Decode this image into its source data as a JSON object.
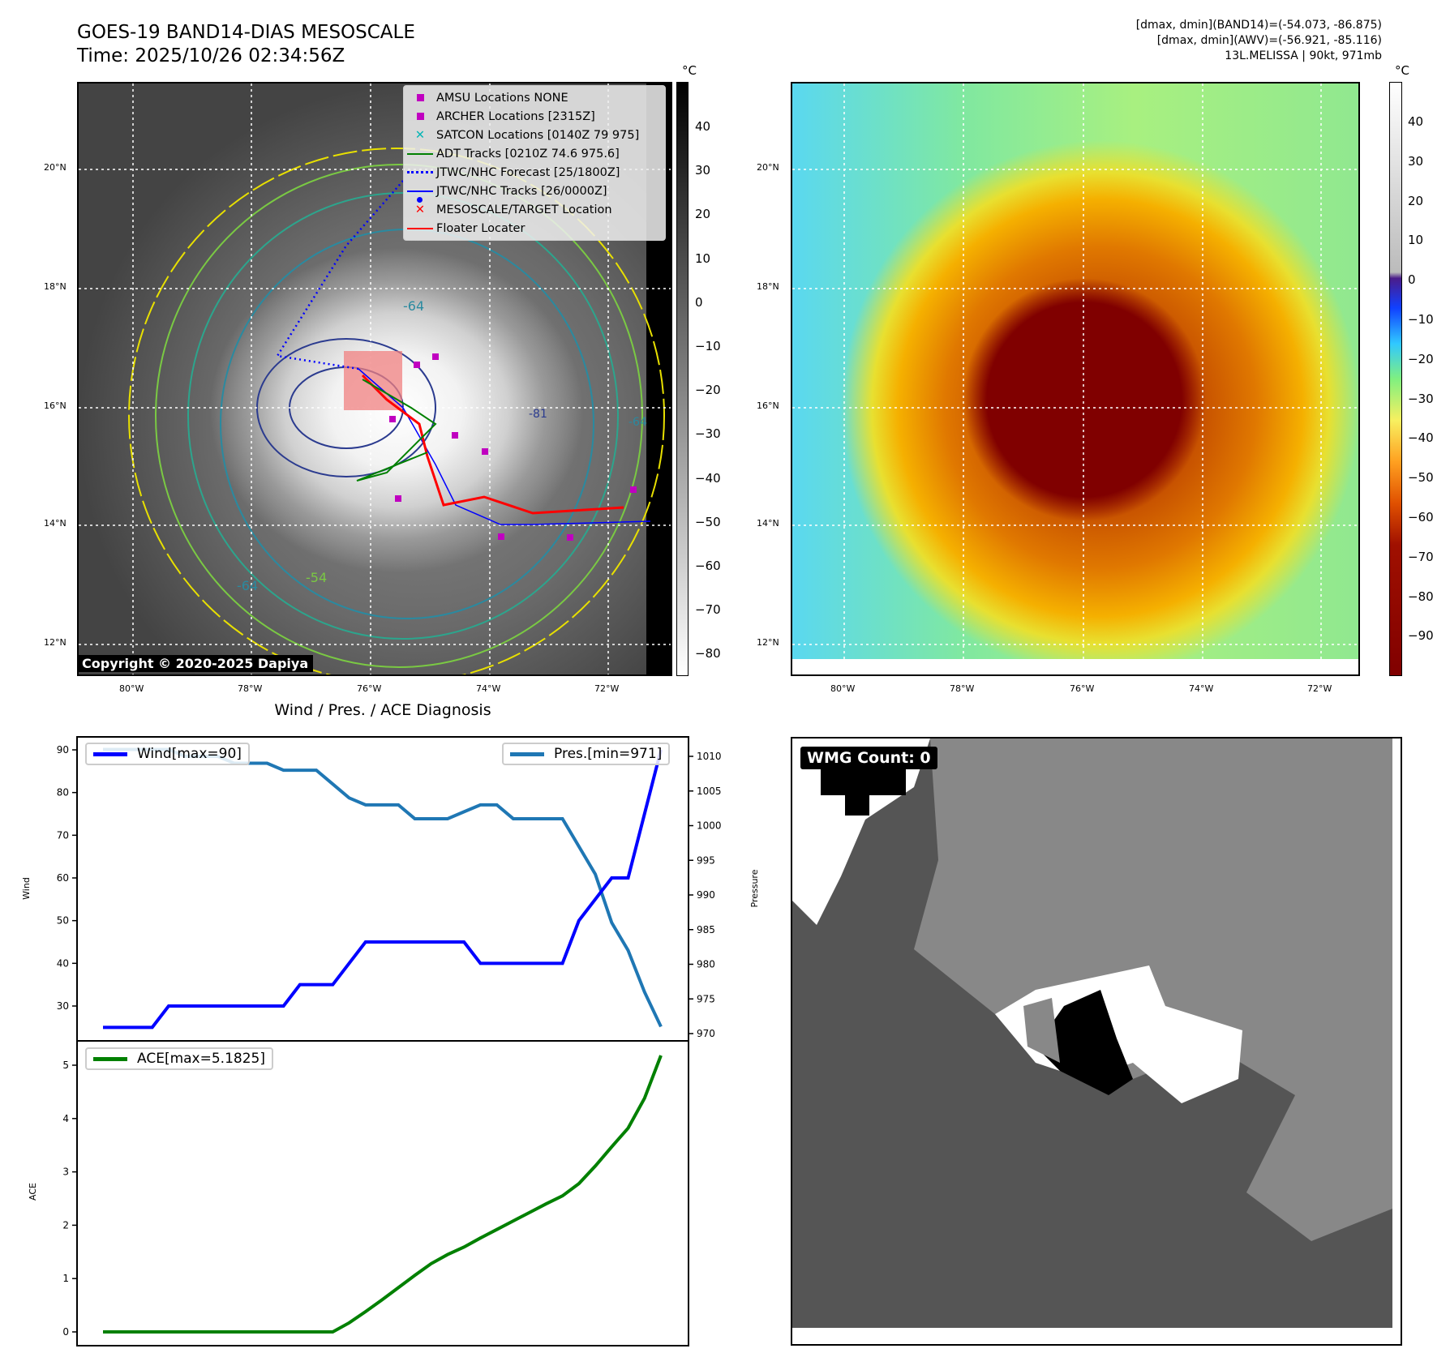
{
  "header": {
    "title": "GOES-19 BAND14-DIAS MESOSCALE",
    "time": "Time: 2025/10/26 02:34:56Z",
    "info_line1": "[dmax, dmin](BAND14)=(-54.073, -86.875)",
    "info_line2": "[dmax, dmin](AWV)=(-56.921, -85.116)",
    "info_line3": "13L.MELISSA | 90kt, 971mb"
  },
  "left_map": {
    "lat_labels": [
      "20°N",
      "18°N",
      "16°N",
      "14°N",
      "12°N"
    ],
    "lon_labels": [
      "80°W",
      "78°W",
      "76°W",
      "74°W",
      "72°W"
    ],
    "contour_labels": [
      "-64",
      "-64",
      "-54",
      "-64",
      "-81"
    ],
    "copyright": "Copyright © 2020-2025 Dapiya",
    "colorbar_unit": "°C",
    "colorbar_ticks": [
      "40",
      "30",
      "20",
      "10",
      "0",
      "−10",
      "−20",
      "−30",
      "−40",
      "−50",
      "−60",
      "−70",
      "−80"
    ],
    "legend": [
      {
        "label": "AMSU Locations NONE",
        "icon": "square-marker",
        "color": "#c000c0"
      },
      {
        "label": "ARCHER Locations [2315Z]",
        "icon": "square-marker",
        "color": "#c000c0"
      },
      {
        "label": "SATCON Locations [0140Z 79 975]",
        "icon": "x-marker",
        "color": "#00b5b5"
      },
      {
        "label": "ADT Tracks [0210Z 74.6 975.6]",
        "icon": "line",
        "color": "#008000"
      },
      {
        "label": "JTWC/NHC Forecast [25/1800Z]",
        "icon": "dotted-line",
        "color": "#0000ff"
      },
      {
        "label": "JTWC/NHC Tracks [26/0000Z]",
        "icon": "line-dot",
        "color": "#0000ff"
      },
      {
        "label": "MESOSCALE/TARGET Location",
        "icon": "x-marker",
        "color": "#ff0000"
      },
      {
        "label": "Floater Locater",
        "icon": "line",
        "color": "#ff0000"
      }
    ]
  },
  "right_map": {
    "lat_labels": [
      "20°N",
      "18°N",
      "16°N",
      "14°N",
      "12°N"
    ],
    "lon_labels": [
      "80°W",
      "78°W",
      "76°W",
      "74°W",
      "72°W"
    ],
    "colorbar_unit": "°C",
    "colorbar_ticks": [
      "40",
      "30",
      "20",
      "10",
      "0",
      "−10",
      "−20",
      "−30",
      "−40",
      "−50",
      "−60",
      "−70",
      "−80",
      "−90"
    ]
  },
  "chart_data": [
    {
      "type": "line",
      "title": "Wind / Pres. / ACE Diagnosis",
      "ylabel": "Wind",
      "y2label": "Pressure",
      "ylim": [
        23.5,
        93.5
      ],
      "y2lim": [
        968.5,
        1012
      ],
      "yticks": [
        "30",
        "40",
        "50",
        "60",
        "70",
        "80",
        "90"
      ],
      "y2ticks": [
        "970",
        "975",
        "980",
        "985",
        "990",
        "995",
        "1000",
        "1005",
        "1010"
      ],
      "series": [
        {
          "name": "Wind[max=90]",
          "color": "#0000ff",
          "axis": "left",
          "values": [
            25,
            25,
            25,
            25,
            30,
            30,
            30,
            30,
            30,
            30,
            30,
            30,
            35,
            35,
            35,
            40,
            45,
            45,
            45,
            45,
            45,
            45,
            45,
            40,
            40,
            40,
            40,
            40,
            40,
            50,
            55,
            60,
            60,
            75,
            90
          ]
        },
        {
          "name": "Pres.[min=971]",
          "color": "#1f77b4",
          "axis": "right",
          "values": [
            1011,
            1011,
            1011,
            1011,
            1011,
            1010,
            1010,
            1010,
            1009,
            1009,
            1009,
            1008,
            1008,
            1008,
            1006,
            1004,
            1003,
            1003,
            1003,
            1001,
            1001,
            1001,
            1002,
            1003,
            1003,
            1001,
            1001,
            1001,
            1001,
            997,
            993,
            986,
            982,
            976,
            971
          ]
        }
      ]
    },
    {
      "type": "line",
      "ylabel": "ACE",
      "ylim": [
        -0.26,
        5.4
      ],
      "yticks": [
        "0",
        "1",
        "2",
        "3",
        "4",
        "5"
      ],
      "series": [
        {
          "name": "ACE[max=5.1825]",
          "color": "#008000",
          "values": [
            0,
            0,
            0,
            0,
            0,
            0,
            0,
            0,
            0,
            0,
            0,
            0,
            0,
            0,
            0,
            0.17,
            0.38,
            0.6,
            0.83,
            1.06,
            1.28,
            1.45,
            1.59,
            1.76,
            1.92,
            2.08,
            2.24,
            2.4,
            2.55,
            2.78,
            3.11,
            3.47,
            3.82,
            4.38,
            5.1825
          ]
        }
      ]
    }
  ],
  "wmg": {
    "label": "WMG Count: 0"
  }
}
